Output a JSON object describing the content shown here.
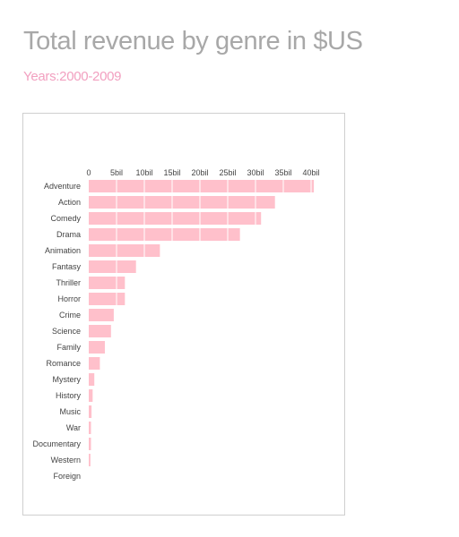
{
  "page": {
    "title": "Total revenue by genre in $US",
    "subtitle": "Years:2000-2009"
  },
  "colors": {
    "title": "#a8a8a8",
    "subtitle": "#f2a0c0",
    "bar": "#ffc0cb",
    "axis_text": "#444444"
  },
  "chart_data": {
    "type": "bar",
    "orientation": "horizontal",
    "x_axis_position": "top",
    "grid": true,
    "xlim": [
      0,
      42000000000
    ],
    "x_ticks": [
      0,
      5000000000,
      10000000000,
      15000000000,
      20000000000,
      25000000000,
      30000000000,
      35000000000,
      40000000000
    ],
    "x_tick_labels": [
      "0",
      "5bil",
      "10bil",
      "15bil",
      "20bil",
      "25bil",
      "30bil",
      "35bil",
      "40bil"
    ],
    "categories": [
      "Adventure",
      "Action",
      "Comedy",
      "Drama",
      "Animation",
      "Fantasy",
      "Thriller",
      "Horror",
      "Crime",
      "Science",
      "Family",
      "Romance",
      "Mystery",
      "History",
      "Music",
      "War",
      "Documentary",
      "Western",
      "Foreign"
    ],
    "values": [
      40500000000,
      33500000000,
      31000000000,
      27200000000,
      12800000000,
      8500000000,
      6500000000,
      6500000000,
      4500000000,
      4000000000,
      2900000000,
      2000000000,
      1000000000,
      700000000,
      500000000,
      400000000,
      400000000,
      300000000,
      0
    ]
  }
}
